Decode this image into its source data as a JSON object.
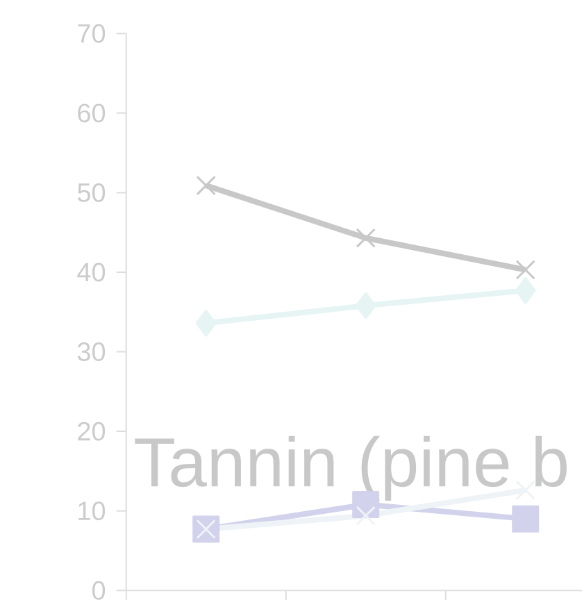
{
  "chart_data": {
    "type": "line",
    "categories": [
      null,
      null,
      null
    ],
    "series": [
      {
        "color": "#c8c8c8",
        "marker": "cross",
        "values": [
          50.9,
          44.3,
          40.3
        ]
      },
      {
        "color": "#e6f4f4",
        "marker": "diamond",
        "values": [
          33.6,
          35.8,
          37.7
        ]
      },
      {
        "color": "#d2d2ec",
        "marker": "square",
        "values": [
          7.7,
          10.8,
          9.0
        ]
      },
      {
        "color": "#eef3f7",
        "marker": "cross",
        "values": [
          7.7,
          9.4,
          12.6
        ]
      }
    ],
    "ylim": [
      0,
      70
    ],
    "yticks": [
      0,
      10,
      20,
      30,
      40,
      50,
      60,
      70
    ],
    "grid": false,
    "annotations": [
      "Tannin (pine b"
    ]
  }
}
